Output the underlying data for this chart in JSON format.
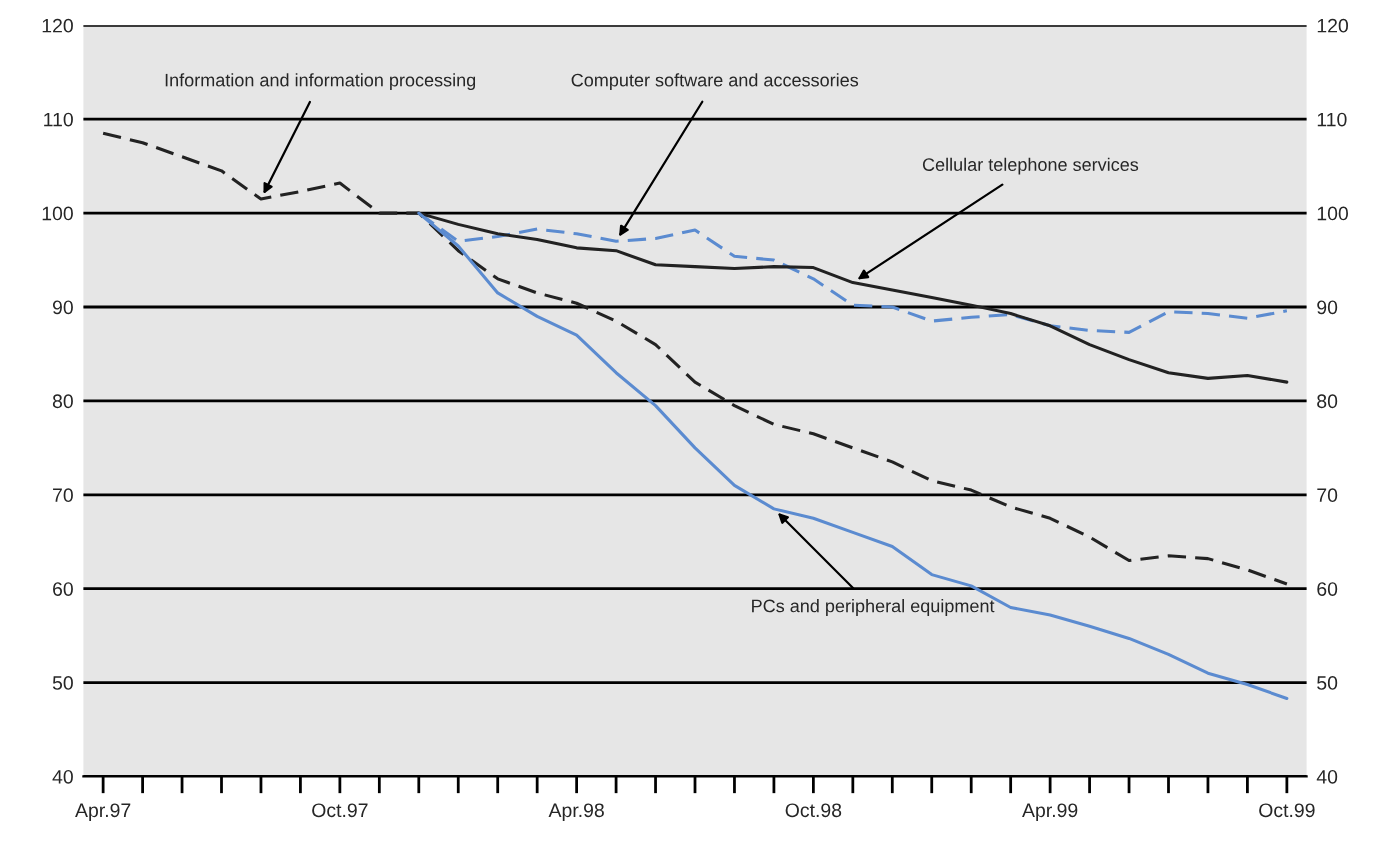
{
  "chart_data": {
    "type": "line",
    "categories": [
      "Apr.97",
      null,
      null,
      null,
      null,
      null,
      "Oct.97",
      null,
      null,
      null,
      null,
      null,
      "Apr.98",
      null,
      null,
      null,
      null,
      null,
      "Oct.98",
      null,
      null,
      null,
      null,
      null,
      "Apr.99",
      null,
      null,
      null,
      null,
      null,
      "Oct.99"
    ],
    "ylim": [
      40,
      120
    ],
    "yticks": [
      40,
      50,
      60,
      70,
      80,
      90,
      100,
      110,
      120
    ],
    "y2lim": [
      40,
      120
    ],
    "y2ticks": [
      40,
      50,
      60,
      70,
      80,
      90,
      100,
      110,
      120
    ],
    "grid": "y",
    "legend": false,
    "series": [
      {
        "name": "Information and information processing",
        "color": "#222222",
        "line_style": "dashed",
        "values": [
          108.5,
          107.5,
          106,
          104.5,
          101.5,
          102.3,
          103.2,
          100,
          100,
          96,
          93,
          91.5,
          90.4,
          88.5,
          86,
          82,
          79.5,
          77.5,
          76.5,
          75,
          73.5,
          71.5,
          70.5,
          68.7,
          67.5,
          65.5,
          63,
          63.5,
          63.2,
          62,
          60.5
        ]
      },
      {
        "name": "Computer software and accessories",
        "color": "#5b8bd0",
        "line_style": "dashed",
        "values": [
          null,
          null,
          null,
          null,
          null,
          null,
          null,
          null,
          100,
          97,
          97.5,
          98.3,
          97.8,
          97,
          97.3,
          98.2,
          95.4,
          95,
          93,
          90.2,
          90,
          88.5,
          88.9,
          89.2,
          88,
          87.5,
          87.3,
          89.5,
          89.3,
          88.8,
          89.6
        ]
      },
      {
        "name": "Cellular telephone services",
        "color": "#222222",
        "line_style": "solid",
        "values": [
          null,
          null,
          null,
          null,
          null,
          null,
          null,
          null,
          100,
          98.8,
          97.8,
          97.2,
          96.3,
          96,
          94.5,
          94.3,
          94.1,
          94.3,
          94.2,
          92.6,
          91.8,
          91,
          90.2,
          89.3,
          88,
          86,
          84.4,
          83,
          82.4,
          82.7,
          82
        ]
      },
      {
        "name": "PCs and peripheral equipment",
        "color": "#5b8bd0",
        "line_style": "solid",
        "values": [
          null,
          null,
          null,
          null,
          null,
          null,
          null,
          null,
          100,
          96.5,
          91.5,
          89,
          87,
          83,
          79.5,
          75,
          71,
          68.5,
          67.5,
          66,
          64.5,
          61.5,
          60.3,
          58,
          57.2,
          56,
          54.7,
          53,
          51,
          49.8,
          48.3
        ]
      }
    ]
  }
}
